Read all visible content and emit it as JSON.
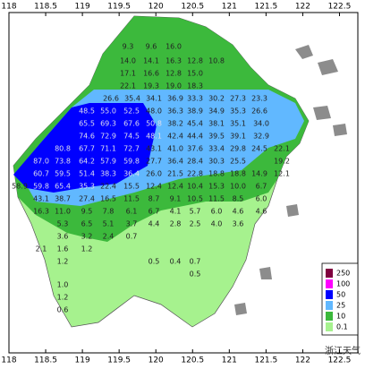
{
  "map": {
    "x_ticks": [
      118,
      118.5,
      119,
      119.5,
      120,
      120.5,
      121,
      121.5,
      122,
      122.5
    ],
    "xlim": [
      118,
      122.75
    ],
    "stations": [
      "9.3",
      "9.6",
      "16.0",
      "14.0",
      "14.1",
      "16.3",
      "12.8",
      "10.8",
      "17.1",
      "16.6",
      "12.8",
      "15.0",
      "22.1",
      "19.3",
      "19.0",
      "18.3",
      "26.6",
      "35.4",
      "34.1",
      "36.9",
      "33.3",
      "30.2",
      "27.3",
      "23.3",
      "48.5",
      "55.0",
      "52.5",
      "48.0",
      "36.3",
      "38.9",
      "34.9",
      "35.3",
      "26.6",
      "65.5",
      "69.3",
      "67.6",
      "50.8",
      "38.2",
      "45.4",
      "38.1",
      "35.1",
      "34.0",
      "74.6",
      "72.9",
      "74.5",
      "48.1",
      "42.4",
      "44.4",
      "39.5",
      "39.1",
      "32.9",
      "80.8",
      "67.7",
      "71.1",
      "72.7",
      "43.1",
      "41.0",
      "37.6",
      "33.4",
      "29.8",
      "24.5",
      "22.1",
      "87.0",
      "73.8",
      "64.2",
      "57.9",
      "59.8",
      "27.7",
      "36.4",
      "28.4",
      "30.3",
      "25.5",
      "19.2",
      "60.7",
      "59.5",
      "51.4",
      "38.3",
      "36.4",
      "26.0",
      "21.5",
      "22.8",
      "18.8",
      "18.8",
      "14.9",
      "12.1",
      "58.9",
      "59.8",
      "65.4",
      "35.3",
      "22.4",
      "15.5",
      "12.4",
      "12.4",
      "10.4",
      "15.3",
      "10.0",
      "6.7",
      "43.1",
      "38.7",
      "27.4",
      "16.5",
      "11.5",
      "8.7",
      "9.1",
      "10.5",
      "11.5",
      "8.5",
      "6.0",
      "16.3",
      "11.0",
      "9.5",
      "7.8",
      "6.1",
      "6.7",
      "4.1",
      "5.7",
      "6.0",
      "4.6",
      "4.6",
      "5.3",
      "6.5",
      "5.1",
      "3.7",
      "4.4",
      "2.8",
      "2.5",
      "4.0",
      "3.6",
      "3.6",
      "3.2",
      "2.4",
      "0.7",
      "2.1",
      "1.6",
      "1.2",
      "1.2",
      "0.5",
      "0.4",
      "0.7",
      "0.5",
      "1.0",
      "1.2",
      "0.6"
    ],
    "legend": [
      {
        "label": 250,
        "color": "#80003f"
      },
      {
        "label": 100,
        "color": "#ff00ff"
      },
      {
        "label": 50,
        "color": "#0000ff"
      },
      {
        "label": 25,
        "color": "#61b8ff"
      },
      {
        "label": 10,
        "color": "#3cb93c"
      },
      {
        "label": 0.1,
        "color": "#a6f28e"
      }
    ],
    "watermark": "浙江天气"
  }
}
